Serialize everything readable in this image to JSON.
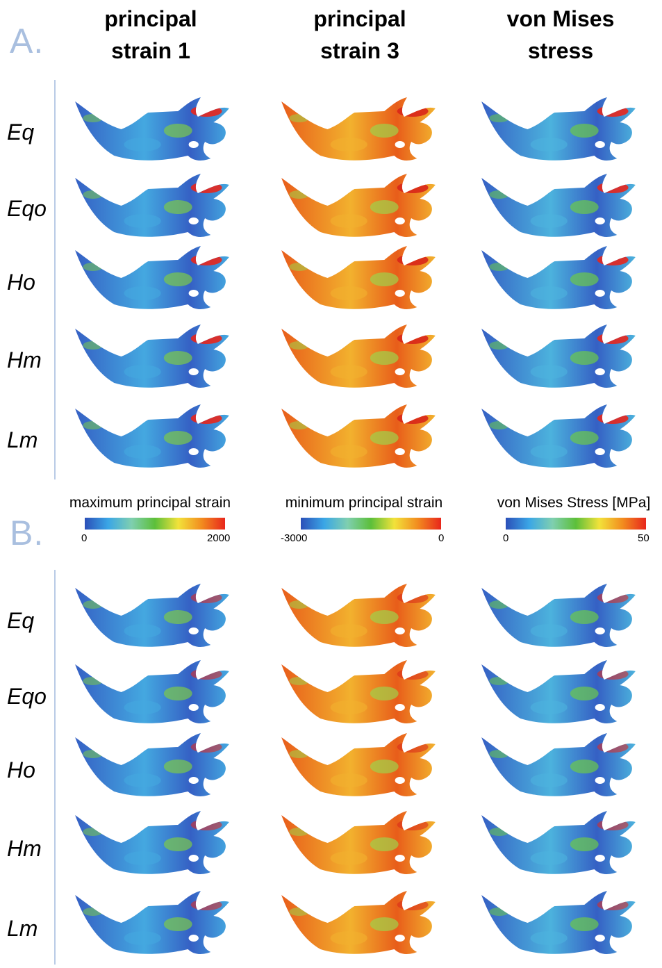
{
  "panels": [
    {
      "letter": "A.",
      "rows": [
        "Eq",
        "Eqo",
        "Ho",
        "Hm",
        "Lm"
      ]
    },
    {
      "letter": "B.",
      "rows": [
        "Eq",
        "Eqo",
        "Ho",
        "Hm",
        "Lm"
      ]
    }
  ],
  "columns": [
    {
      "line1": "principal",
      "line2": "strain 1"
    },
    {
      "line1": "principal",
      "line2": "strain 3"
    },
    {
      "line1": "von Mises",
      "line2": "stress"
    }
  ],
  "legends": [
    {
      "title": "maximum principal strain",
      "min": "0",
      "max": "2000"
    },
    {
      "title": "minimum principal strain",
      "min": "-3000",
      "max": "0"
    },
    {
      "title": "von Mises Stress [MPa]",
      "min": "0",
      "max": "50"
    }
  ],
  "colors": {
    "panel_letter": "#a9bfdf",
    "divider": "#b9cbe6",
    "colormap": [
      "#2b4fb8",
      "#3aa6e6",
      "#7fcfb0",
      "#5cbf3a",
      "#f2e23a",
      "#f28c1f",
      "#e8261c"
    ]
  }
}
